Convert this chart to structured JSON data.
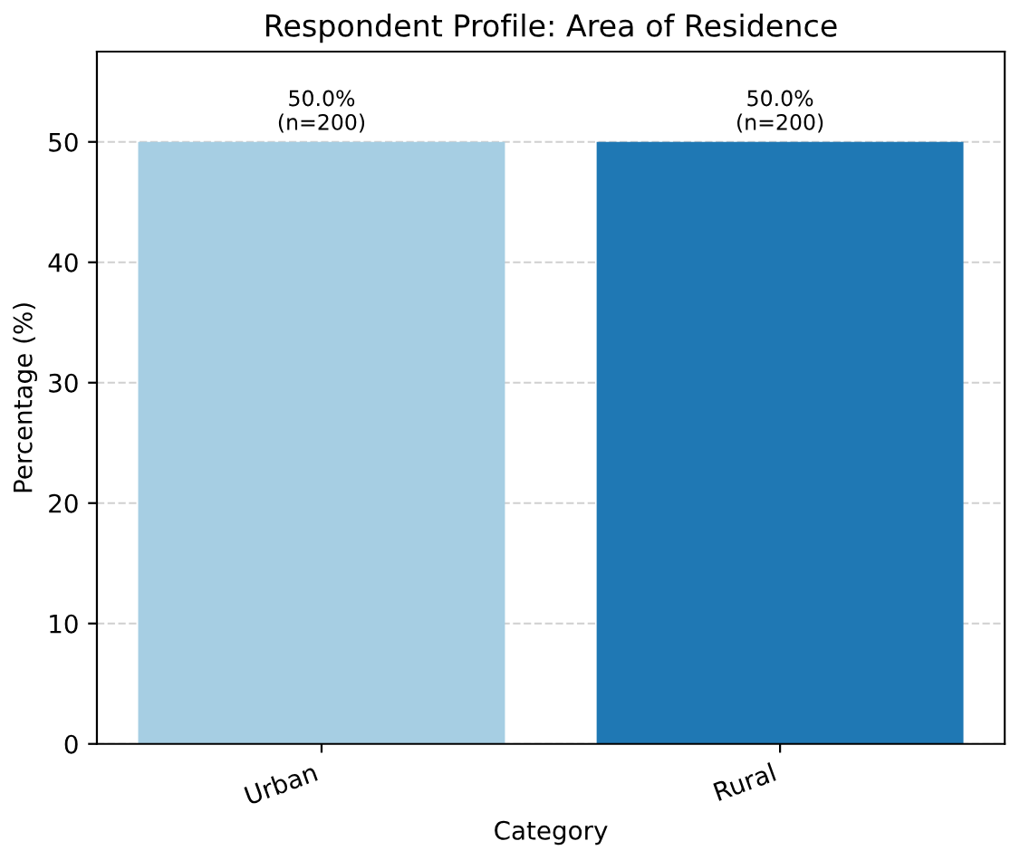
{
  "chart_data": {
    "type": "bar",
    "title": "Respondent Profile: Area of Residence",
    "xlabel": "Category",
    "ylabel": "Percentage (%)",
    "categories": [
      "Urban",
      "Rural"
    ],
    "values": [
      50.0,
      50.0
    ],
    "colors": [
      "#a6cee3",
      "#1f78b4"
    ],
    "value_labels": [
      "50.0%\n(n=200)",
      "50.0%\n(n=200)"
    ],
    "ylim": [
      0,
      57.5
    ],
    "yticks": [
      0,
      10,
      20,
      30,
      40,
      50
    ],
    "grid": "y"
  }
}
